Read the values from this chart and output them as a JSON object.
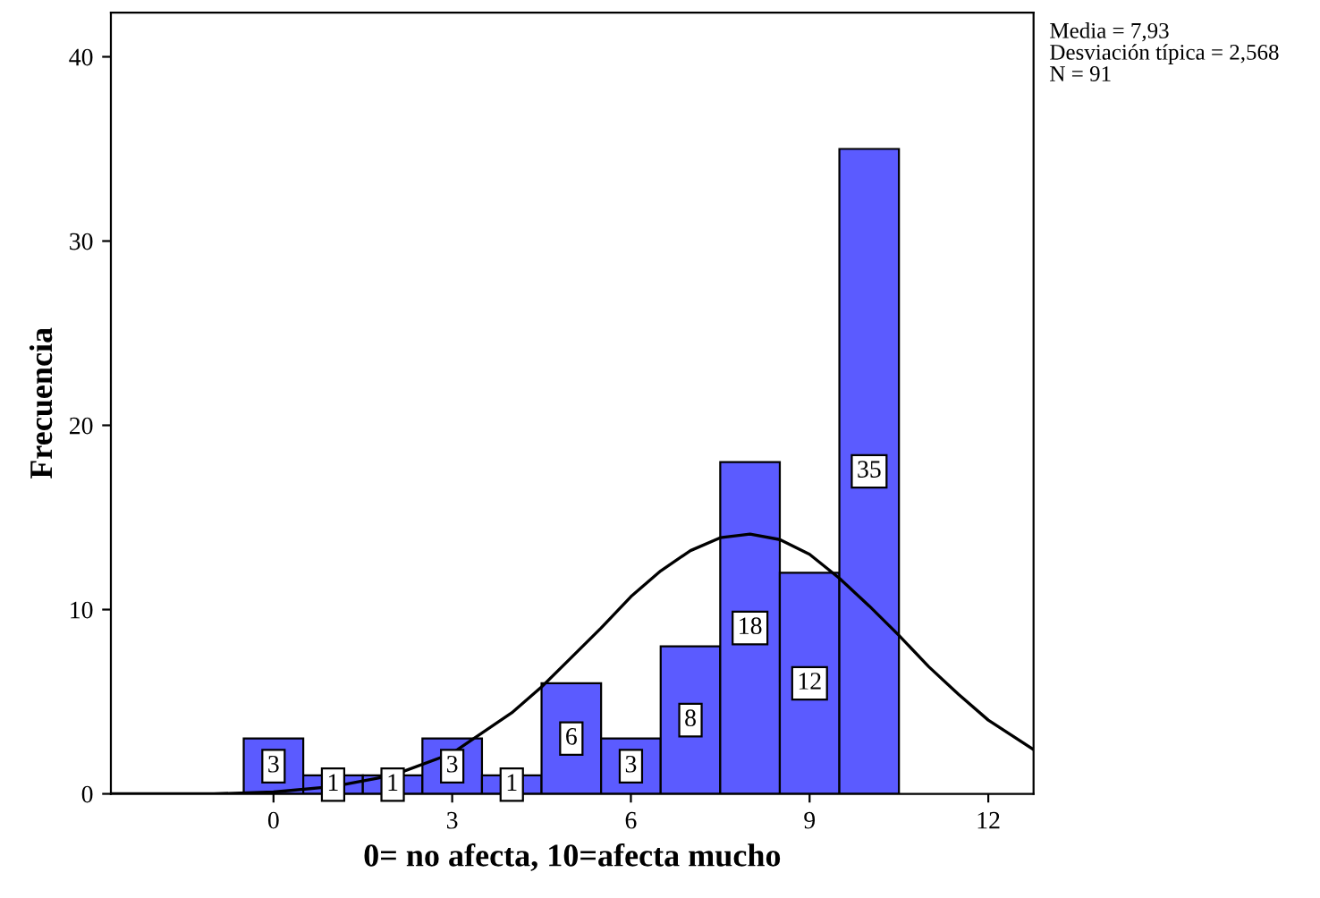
{
  "chart_data": {
    "type": "histogram",
    "xlabel": "0= no afecta, 10=afecta mucho",
    "ylabel": "Frecuencia",
    "bins": [
      -0.5,
      0.5,
      1.5,
      2.5,
      3.5,
      4.5,
      5.5,
      6.5,
      7.5,
      8.5,
      9.5,
      10.5
    ],
    "series": [
      {
        "color": "#5b5bff",
        "values": [
          3,
          1,
          1,
          3,
          1,
          6,
          3,
          8,
          18,
          12,
          35
        ],
        "value_labels": [
          "3",
          "1",
          "1",
          "3",
          "1",
          "6",
          "3",
          "8",
          "18",
          "12",
          "35"
        ]
      },
      {
        "type": "line",
        "color": "#000000",
        "x": [
          -2.7,
          -1,
          0,
          1,
          2,
          3,
          4,
          4.5,
          5,
          5.5,
          6,
          6.5,
          7,
          7.5,
          8,
          8.5,
          9,
          9.5,
          10,
          10.5,
          11,
          11.5,
          12,
          12.76
        ],
        "values": [
          0.0,
          0.0,
          0.1,
          0.4,
          1.0,
          2.2,
          4.4,
          5.8,
          7.4,
          9.0,
          10.7,
          12.1,
          13.2,
          13.9,
          14.1,
          13.8,
          13.0,
          11.7,
          10.2,
          8.6,
          6.9,
          5.4,
          4.0,
          2.4
        ]
      }
    ],
    "xlim": [
      -2.73,
      12.76
    ],
    "ylim": [
      0,
      42.4
    ],
    "xticks": [
      0,
      3,
      6,
      9,
      12
    ],
    "yticks": [
      0,
      10,
      20,
      30,
      40
    ],
    "grid": false,
    "legend": false,
    "marker": "none",
    "line_style": "solid",
    "annotations": [
      "Media = 7,93",
      "Desviación típica = 2,568",
      "N = 91"
    ]
  }
}
